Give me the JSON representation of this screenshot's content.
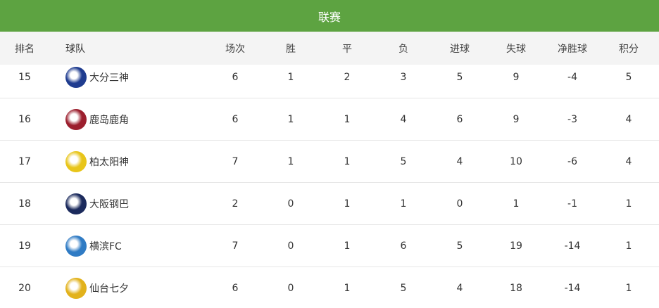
{
  "title": "联赛",
  "headers": [
    "排名",
    "球队",
    "场次",
    "胜",
    "平",
    "负",
    "进球",
    "失球",
    "净胜球",
    "积分"
  ],
  "rows": [
    {
      "rank": "15",
      "team": "大分三神",
      "logo": "oita-trinita-logo",
      "logo_color": "#1f3c8f",
      "played": "6",
      "w": "1",
      "d": "2",
      "l": "3",
      "gf": "5",
      "ga": "9",
      "gd": "-4",
      "pts": "5"
    },
    {
      "rank": "16",
      "team": "鹿岛鹿角",
      "logo": "kashima-antlers-logo",
      "logo_color": "#9c1f2e",
      "played": "6",
      "w": "1",
      "d": "1",
      "l": "4",
      "gf": "6",
      "ga": "9",
      "gd": "-3",
      "pts": "4"
    },
    {
      "rank": "17",
      "team": "柏太阳神",
      "logo": "kashiwa-reysol-logo",
      "logo_color": "#e8c51a",
      "played": "7",
      "w": "1",
      "d": "1",
      "l": "5",
      "gf": "4",
      "ga": "10",
      "gd": "-6",
      "pts": "4"
    },
    {
      "rank": "18",
      "team": "大阪钢巴",
      "logo": "gamba-osaka-logo",
      "logo_color": "#1b2a5c",
      "played": "2",
      "w": "0",
      "d": "1",
      "l": "1",
      "gf": "0",
      "ga": "1",
      "gd": "-1",
      "pts": "1"
    },
    {
      "rank": "19",
      "team": "横滨FC",
      "logo": "yokohama-fc-logo",
      "logo_color": "#2f7bc4",
      "played": "7",
      "w": "0",
      "d": "1",
      "l": "6",
      "gf": "5",
      "ga": "19",
      "gd": "-14",
      "pts": "1"
    },
    {
      "rank": "20",
      "team": "仙台七夕",
      "logo": "vegalta-sendai-logo",
      "logo_color": "#e2b21c",
      "played": "6",
      "w": "0",
      "d": "1",
      "l": "5",
      "gf": "4",
      "ga": "18",
      "gd": "-14",
      "pts": "1"
    }
  ]
}
